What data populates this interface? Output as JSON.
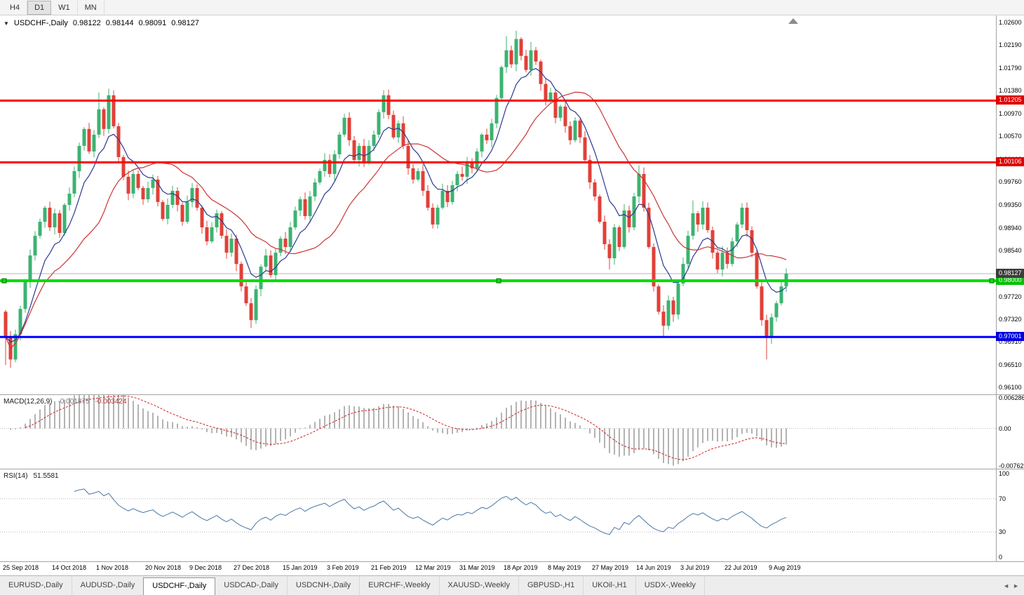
{
  "toolbar": {
    "buttons": [
      {
        "label": "H4",
        "active": false
      },
      {
        "label": "D1",
        "active": true
      },
      {
        "label": "W1",
        "active": false
      },
      {
        "label": "MN",
        "active": false
      }
    ]
  },
  "chart": {
    "header": {
      "dropdown": "▼",
      "title": "USDCHF-,Daily",
      "open": "0.98122",
      "high": "0.98144",
      "low": "0.98091",
      "close": "0.98127"
    }
  },
  "chart_data": {
    "type": "candlestick",
    "symbol": "USDCHF",
    "timeframe": "Daily",
    "colors": {
      "up": "#3CB371",
      "down": "#E14038",
      "ma_fast": "#2B3990",
      "ma_slow": "#CC3333",
      "macd_hist": "#A0A0A0",
      "macd_signal": "#D02020",
      "rsi_line": "#4A76A8",
      "grid_dotted": "#B8B8B8",
      "current_price_line": "#B4B4B4"
    },
    "price_axis": {
      "max": 1.0272,
      "min": 0.9598,
      "labels": [
        "1.02600",
        "1.02190",
        "1.01790",
        "1.01380",
        "1.00970",
        "1.00570",
        "1.00160",
        "0.99760",
        "0.99350",
        "0.98940",
        "0.98540",
        "0.98130",
        "0.97720",
        "0.97320",
        "0.96910",
        "0.96510",
        "0.96100"
      ]
    },
    "x_labels": [
      {
        "i": 0,
        "label": "25 Sep 2018"
      },
      {
        "i": 10,
        "label": "14 Oct 2018"
      },
      {
        "i": 19,
        "label": "1 Nov 2018"
      },
      {
        "i": 29,
        "label": "20 Nov 2018"
      },
      {
        "i": 38,
        "label": "9 Dec 2018"
      },
      {
        "i": 47,
        "label": "27 Dec 2018"
      },
      {
        "i": 57,
        "label": "15 Jan 2019"
      },
      {
        "i": 66,
        "label": "3 Feb 2019"
      },
      {
        "i": 75,
        "label": "21 Feb 2019"
      },
      {
        "i": 84,
        "label": "12 Mar 2019"
      },
      {
        "i": 93,
        "label": "31 Mar 2019"
      },
      {
        "i": 102,
        "label": "18 Apr 2019"
      },
      {
        "i": 111,
        "label": "8 May 2019"
      },
      {
        "i": 120,
        "label": "27 May 2019"
      },
      {
        "i": 129,
        "label": "14 Jun 2019"
      },
      {
        "i": 138,
        "label": "3 Jul 2019"
      },
      {
        "i": 147,
        "label": "22 Jul 2019"
      },
      {
        "i": 156,
        "label": "9 Aug 2019"
      }
    ],
    "candles": {
      "first_open": 0.9745,
      "closes": [
        0.97,
        0.966,
        0.9705,
        0.975,
        0.98,
        0.9845,
        0.988,
        0.9905,
        0.993,
        0.9895,
        0.992,
        0.9885,
        0.9935,
        0.9955,
        0.9995,
        1.004,
        1.007,
        1.003,
        1.006,
        1.0105,
        1.007,
        1.013,
        1.0075,
        1.002,
        0.9985,
        0.9955,
        0.999,
        0.9965,
        0.9945,
        0.9965,
        0.998,
        0.994,
        0.991,
        0.9935,
        0.996,
        0.9935,
        0.9905,
        0.994,
        0.9965,
        0.993,
        0.9895,
        0.987,
        0.9895,
        0.992,
        0.988,
        0.985,
        0.9875,
        0.983,
        0.979,
        0.976,
        0.973,
        0.9785,
        0.9825,
        0.9845,
        0.981,
        0.985,
        0.9875,
        0.986,
        0.9895,
        0.9925,
        0.9945,
        0.9915,
        0.995,
        0.9975,
        0.9995,
        1.0015,
        0.999,
        1.0025,
        1.006,
        1.009,
        1.005,
        1.0015,
        1.004,
        1.001,
        1.004,
        1.006,
        1.01,
        1.013,
        1.0095,
        1.0055,
        1.008,
        1.004,
        1.0,
        0.998,
        0.9995,
        0.996,
        0.993,
        0.99,
        0.993,
        0.996,
        0.994,
        0.997,
        0.999,
        0.9985,
        1.001,
        1.0,
        1.003,
        1.006,
        1.005,
        1.008,
        1.0125,
        1.018,
        1.021,
        1.0185,
        1.023,
        1.02,
        1.0175,
        1.021,
        1.019,
        1.015,
        1.012,
        1.0135,
        1.009,
        1.011,
        1.0075,
        1.005,
        1.0085,
        1.0055,
        1.0015,
        0.9975,
        0.995,
        0.9905,
        0.9865,
        0.984,
        0.9895,
        0.986,
        0.9925,
        0.9895,
        0.995,
        0.999,
        0.993,
        0.986,
        0.979,
        0.9745,
        0.972,
        0.9765,
        0.974,
        0.9795,
        0.983,
        0.988,
        0.992,
        0.99,
        0.993,
        0.989,
        0.985,
        0.982,
        0.985,
        0.983,
        0.987,
        0.99,
        0.993,
        0.989,
        0.985,
        0.979,
        0.973,
        0.97,
        0.9735,
        0.976,
        0.979,
        0.98127
      ],
      "wicks": [
        {
          "i": 0,
          "low": 0.965
        },
        {
          "i": 1,
          "low": 0.9645
        },
        {
          "i": 19,
          "high": 1.0135
        },
        {
          "i": 21,
          "high": 1.0142
        },
        {
          "i": 50,
          "low": 0.9716
        },
        {
          "i": 69,
          "high": 1.0097
        },
        {
          "i": 77,
          "high": 1.0139
        },
        {
          "i": 87,
          "low": 0.9893
        },
        {
          "i": 102,
          "high": 1.0235
        },
        {
          "i": 104,
          "high": 1.0245
        },
        {
          "i": 107,
          "high": 1.0225
        },
        {
          "i": 123,
          "low": 0.982
        },
        {
          "i": 129,
          "high": 1.0005
        },
        {
          "i": 134,
          "low": 0.97
        },
        {
          "i": 140,
          "high": 0.9943
        },
        {
          "i": 150,
          "high": 0.9938
        },
        {
          "i": 155,
          "low": 0.966
        },
        {
          "i": 159,
          "high": 0.9822
        }
      ]
    },
    "moving_averages": [
      {
        "type": "ema",
        "period": 8,
        "color": "#2B3990"
      },
      {
        "type": "sma",
        "period": 20,
        "color": "#CC3333"
      }
    ],
    "hlines": [
      {
        "price": 1.01205,
        "color": "#FF0000",
        "width": 3,
        "tag": "1.01205",
        "tag_bg": "#E00000",
        "handles": false
      },
      {
        "price": 1.00106,
        "color": "#FF0000",
        "width": 3,
        "tag": "1.00106",
        "tag_bg": "#E00000",
        "handles": false
      },
      {
        "price": 0.98,
        "color": "#00DD00",
        "width": 4,
        "tag": "0.98000",
        "tag_bg": "#00C000",
        "handles": true
      },
      {
        "price": 0.97001,
        "color": "#0000FF",
        "width": 3,
        "tag": "0.97001",
        "tag_bg": "#0000E0",
        "handles": false
      }
    ],
    "current_price": {
      "value": 0.98127,
      "label": "0.98127",
      "tag_bg": "#3C3C3C"
    },
    "macd": {
      "label": "MACD(12,26,9)",
      "value1": "-0.001875",
      "value2": "-0.003424",
      "axis_labels": [
        "0.006286",
        "0.00",
        "-0.00762"
      ],
      "scale_max": 0.0068,
      "scale_min": -0.0082
    },
    "rsi": {
      "label": "RSI(14)",
      "value": "51.5581",
      "period": 14,
      "levels": [
        70,
        30
      ],
      "axis_labels": [
        100,
        70,
        30,
        0
      ]
    }
  },
  "tabs": {
    "scroll_left": "◄",
    "scroll_right": "►",
    "items": [
      {
        "label": "EURUSD-,Daily",
        "active": false
      },
      {
        "label": "AUDUSD-,Daily",
        "active": false
      },
      {
        "label": "USDCHF-,Daily",
        "active": true
      },
      {
        "label": "USDCAD-,Daily",
        "active": false
      },
      {
        "label": "USDCNH-,Daily",
        "active": false
      },
      {
        "label": "EURCHF-,Weekly",
        "active": false
      },
      {
        "label": "XAUUSD-,Weekly",
        "active": false
      },
      {
        "label": "GBPUSD-,H1",
        "active": false
      },
      {
        "label": "UKOil-,H1",
        "active": false
      },
      {
        "label": "USDX-,Weekly",
        "active": false
      }
    ]
  }
}
